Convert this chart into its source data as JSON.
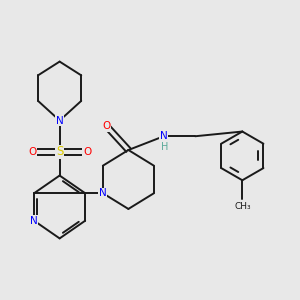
{
  "background_color": "#e8e8e8",
  "bond_color": "#1a1a1a",
  "atom_colors": {
    "N": "#0000ff",
    "O": "#ff0000",
    "S": "#ddcc00",
    "H": "#5aaa99",
    "C": "#1a1a1a"
  },
  "lw": 1.4,
  "fs": 7.5
}
